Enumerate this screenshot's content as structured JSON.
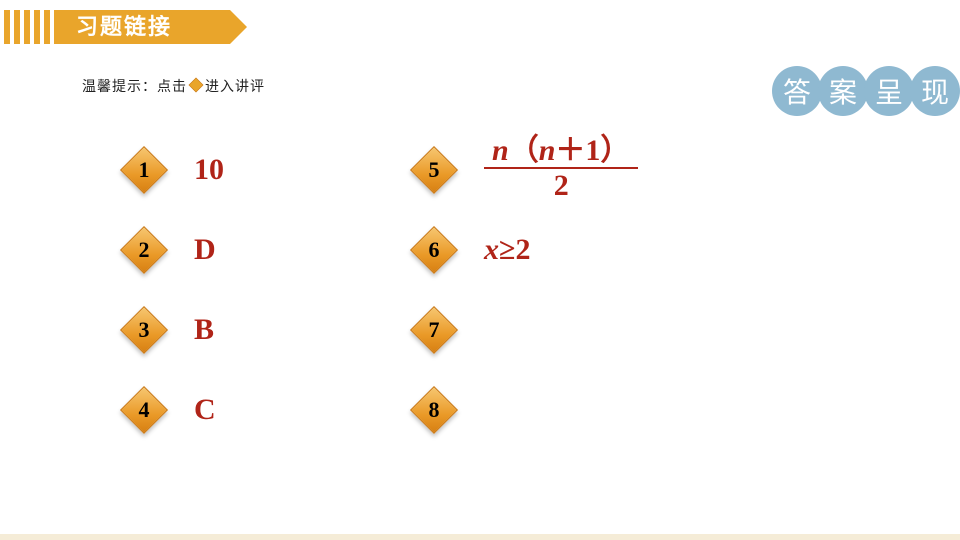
{
  "header": {
    "title": "习题链接",
    "bg_color": "#e9a52b",
    "text_color": "#ffffff"
  },
  "hint": {
    "prefix": "温馨提示：点击",
    "suffix": "进入讲评",
    "icon_color": "#e9a52b"
  },
  "badge": {
    "chars": [
      "答",
      "案",
      "呈",
      "现"
    ],
    "bg_color": "#8fb9d1",
    "text_color": "#ffffff"
  },
  "columns": [
    {
      "items": [
        {
          "num": "1",
          "answer_type": "plain",
          "answer": "10"
        },
        {
          "num": "2",
          "answer_type": "plain",
          "answer": "D"
        },
        {
          "num": "3",
          "answer_type": "plain",
          "answer": "B"
        },
        {
          "num": "4",
          "answer_type": "plain",
          "answer": "C"
        }
      ]
    },
    {
      "items": [
        {
          "num": "5",
          "answer_type": "fraction",
          "frac_top_html": "<span class='ital'>n</span>（<span class='ital'>n</span>＋1）",
          "frac_bot": "2"
        },
        {
          "num": "6",
          "answer_type": "html",
          "answer_html": "<span class='ital'>x</span>≥2"
        },
        {
          "num": "7",
          "answer_type": "none"
        },
        {
          "num": "8",
          "answer_type": "none"
        }
      ]
    }
  ],
  "style": {
    "answer_color": "#b02418",
    "diamond_gradient_from": "#f6c670",
    "diamond_gradient_to": "#d67f12",
    "diamond_border": "#c77410",
    "answer_fontsize": 30,
    "num_fontsize": 22
  }
}
